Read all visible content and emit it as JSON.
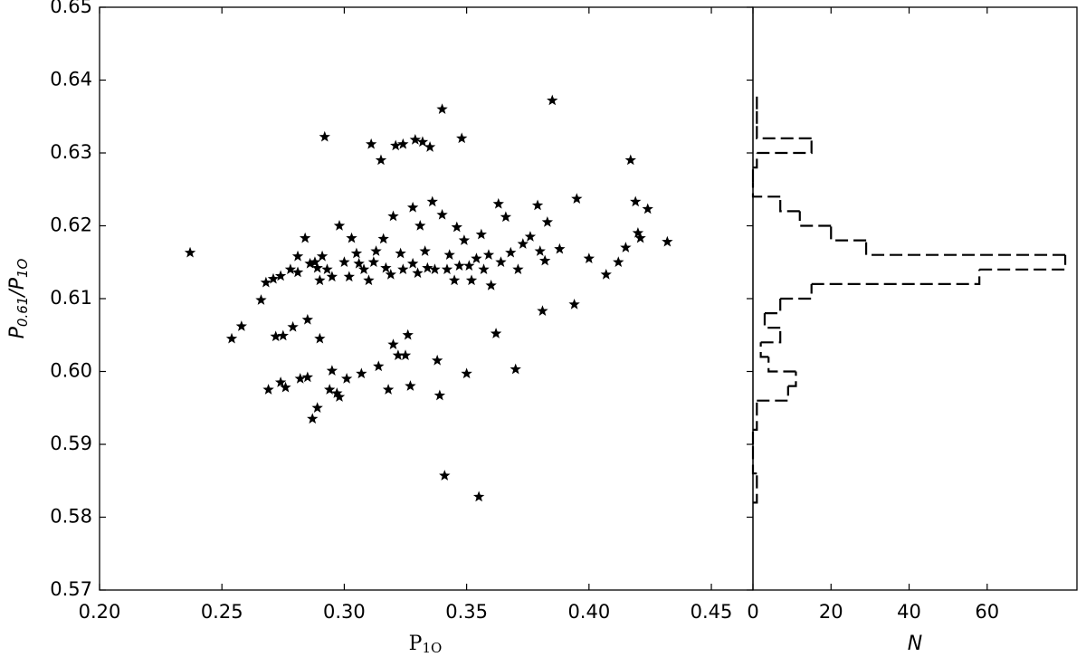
{
  "chart_data": [
    {
      "type": "scatter",
      "color": "#000000",
      "marker": "star",
      "xlabel": [
        "P",
        "1O"
      ],
      "ylabel": [
        "P",
        "0.61",
        "/P",
        "1O"
      ],
      "xlim": [
        0.2,
        0.467
      ],
      "ylim": [
        0.57,
        0.65
      ],
      "xticks": [
        {
          "value": 0.2,
          "label": "0.20"
        },
        0.25,
        {
          "value": 0.3,
          "label": "0.30"
        },
        0.35,
        {
          "value": 0.4,
          "label": "0.40"
        },
        0.45
      ],
      "yticks": [
        0.57,
        0.58,
        0.59,
        {
          "value": 0.6,
          "label": "0.60"
        },
        0.61,
        0.62,
        0.63,
        0.64,
        0.65
      ],
      "x": [
        0.237,
        0.254,
        0.258,
        0.266,
        0.268,
        0.269,
        0.271,
        0.272,
        0.274,
        0.275,
        0.274,
        0.276,
        0.278,
        0.279,
        0.281,
        0.281,
        0.282,
        0.284,
        0.285,
        0.285,
        0.286,
        0.287,
        0.288,
        0.289,
        0.289,
        0.29,
        0.29,
        0.291,
        0.292,
        0.293,
        0.294,
        0.295,
        0.295,
        0.297,
        0.298,
        0.298,
        0.3,
        0.301,
        0.302,
        0.303,
        0.305,
        0.306,
        0.307,
        0.308,
        0.31,
        0.311,
        0.312,
        0.313,
        0.314,
        0.315,
        0.316,
        0.317,
        0.318,
        0.319,
        0.32,
        0.32,
        0.321,
        0.322,
        0.323,
        0.324,
        0.324,
        0.325,
        0.326,
        0.327,
        0.328,
        0.328,
        0.329,
        0.33,
        0.331,
        0.332,
        0.333,
        0.334,
        0.335,
        0.336,
        0.337,
        0.338,
        0.339,
        0.34,
        0.34,
        0.341,
        0.342,
        0.343,
        0.345,
        0.346,
        0.347,
        0.348,
        0.349,
        0.35,
        0.351,
        0.352,
        0.354,
        0.355,
        0.356,
        0.357,
        0.359,
        0.36,
        0.362,
        0.363,
        0.364,
        0.366,
        0.368,
        0.37,
        0.371,
        0.373,
        0.376,
        0.379,
        0.38,
        0.381,
        0.382,
        0.383,
        0.385,
        0.388,
        0.394,
        0.395,
        0.4,
        0.407,
        0.412,
        0.415,
        0.417,
        0.419,
        0.42,
        0.421,
        0.424,
        0.432
      ],
      "values": [
        0.6163,
        0.6045,
        0.6062,
        0.6098,
        0.6122,
        0.5975,
        0.6127,
        0.6048,
        0.6131,
        0.6049,
        0.5985,
        0.5978,
        0.614,
        0.6061,
        0.6136,
        0.6158,
        0.599,
        0.6183,
        0.6071,
        0.5992,
        0.6148,
        0.5935,
        0.615,
        0.595,
        0.6142,
        0.6045,
        0.6125,
        0.6158,
        0.6322,
        0.614,
        0.5975,
        0.613,
        0.6001,
        0.597,
        0.62,
        0.5965,
        0.615,
        0.599,
        0.613,
        0.6183,
        0.6162,
        0.6148,
        0.5997,
        0.614,
        0.6125,
        0.6312,
        0.615,
        0.6165,
        0.6007,
        0.629,
        0.6182,
        0.6142,
        0.5975,
        0.6133,
        0.6213,
        0.6037,
        0.631,
        0.6022,
        0.6162,
        0.614,
        0.6312,
        0.6022,
        0.605,
        0.598,
        0.6225,
        0.6148,
        0.6318,
        0.6135,
        0.62,
        0.6315,
        0.6165,
        0.6142,
        0.6308,
        0.6233,
        0.614,
        0.6015,
        0.5967,
        0.636,
        0.6215,
        0.5857,
        0.614,
        0.616,
        0.6125,
        0.6198,
        0.6145,
        0.632,
        0.618,
        0.5997,
        0.6145,
        0.6125,
        0.6155,
        0.5828,
        0.6188,
        0.614,
        0.616,
        0.6118,
        0.6052,
        0.623,
        0.615,
        0.6212,
        0.6163,
        0.6003,
        0.614,
        0.6175,
        0.6185,
        0.6228,
        0.6165,
        0.6083,
        0.6152,
        0.6205,
        0.6372,
        0.6168,
        0.6092,
        0.6237,
        0.6155,
        0.6133,
        0.615,
        0.617,
        0.629,
        0.6233,
        0.619,
        0.6183,
        0.6223,
        0.6178
      ]
    },
    {
      "type": "histogram",
      "orientation": "horizontal",
      "color": "#000000",
      "linestyle": "dashed",
      "xlabel": "N",
      "xlim": [
        0,
        83
      ],
      "xticks": [
        0,
        20,
        40,
        60
      ],
      "ylim": [
        0.57,
        0.65
      ],
      "bins": [
        0.582,
        0.584,
        0.586,
        0.588,
        0.59,
        0.592,
        0.594,
        0.596,
        0.598,
        0.6,
        0.602,
        0.604,
        0.606,
        0.608,
        0.61,
        0.612,
        0.614,
        0.616,
        0.618,
        0.62,
        0.622,
        0.624,
        0.626,
        0.628,
        0.63,
        0.632,
        0.634,
        0.636,
        0.638
      ],
      "values": [
        1,
        1,
        0,
        0,
        0,
        1,
        1,
        9,
        11,
        4,
        2,
        7,
        3,
        7,
        15,
        58,
        80,
        29,
        20,
        12,
        7,
        0,
        0,
        1,
        15,
        1,
        1,
        1
      ]
    }
  ]
}
